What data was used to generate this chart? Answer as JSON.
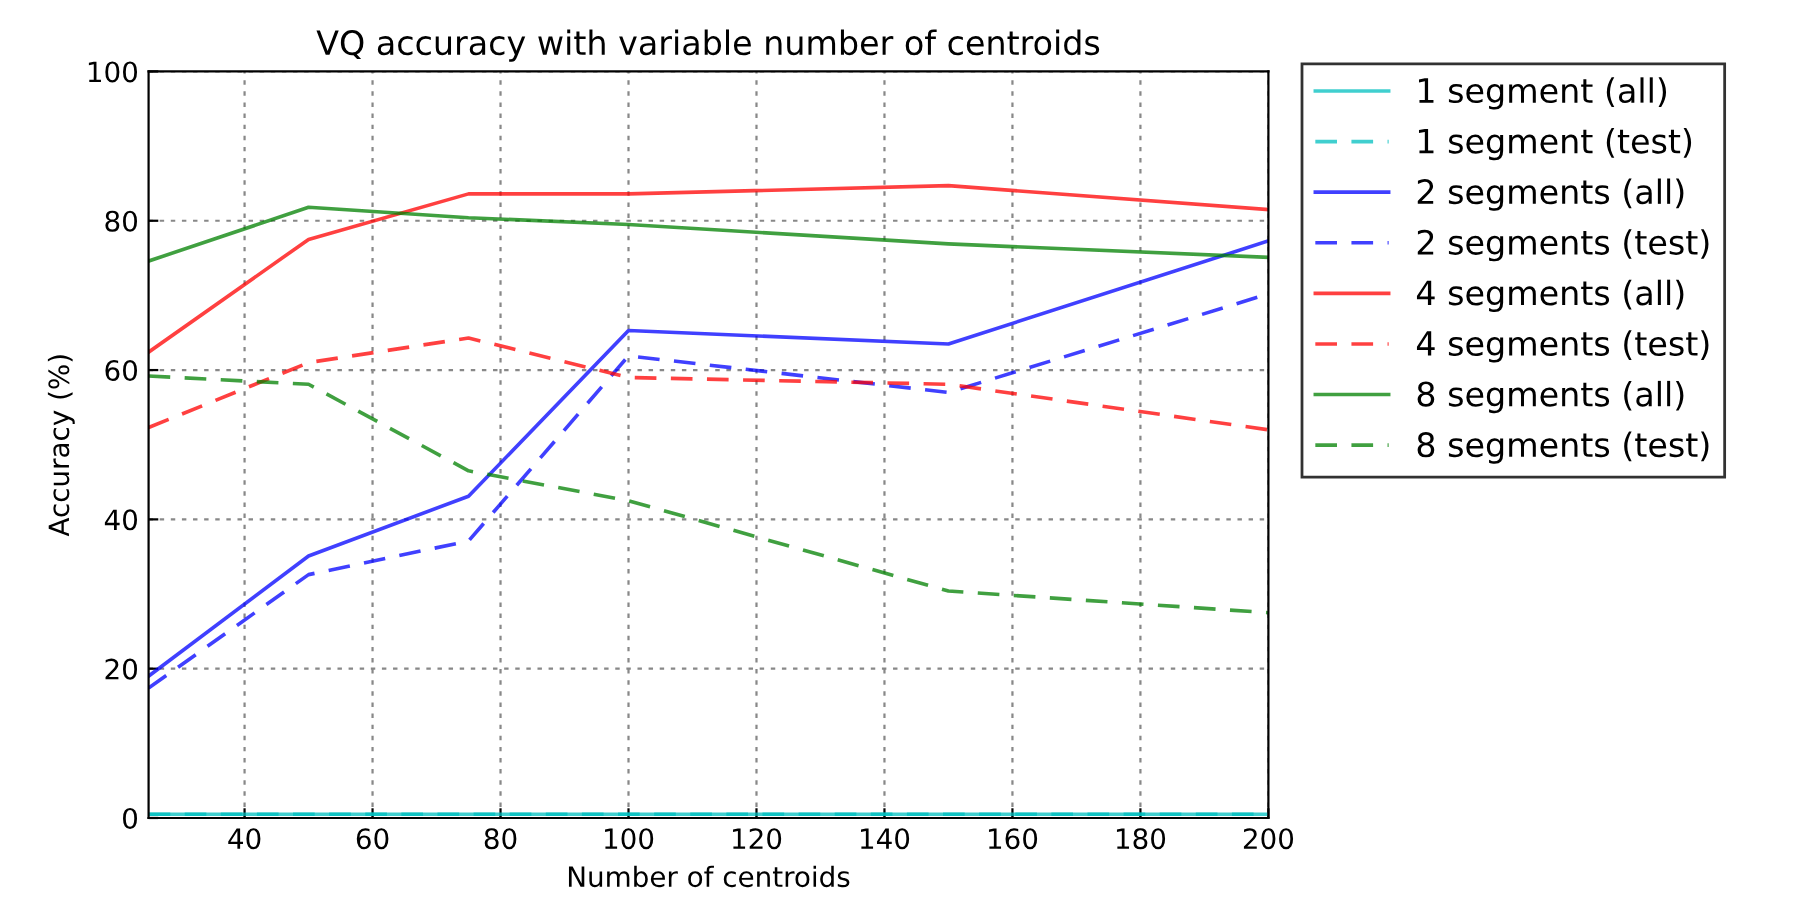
{
  "chart_data": {
    "type": "line",
    "title": "VQ accuracy with variable number of centroids",
    "xlabel": "Number of centroids",
    "ylabel": "Accuracy (%)",
    "x": [
      25,
      50,
      75,
      100,
      150,
      200
    ],
    "series": [
      {
        "name": "1 segment (all)",
        "color": "#00bfbf",
        "line_style": "solid",
        "values": [
          0.5,
          0.5,
          0.5,
          0.5,
          0.5,
          0.5
        ]
      },
      {
        "name": "1 segment (test)",
        "color": "#00bfbf",
        "line_style": "dashed",
        "values": [
          0.5,
          0.5,
          0.5,
          0.5,
          0.5,
          0.5
        ]
      },
      {
        "name": "2 segments (all)",
        "color": "#0000ff",
        "line_style": "solid",
        "values": [
          19.0,
          35.1,
          43.1,
          65.3,
          63.5,
          77.3
        ]
      },
      {
        "name": "2 segments (test)",
        "color": "#0000ff",
        "line_style": "dashed",
        "values": [
          17.4,
          32.6,
          37.1,
          61.9,
          57.0,
          70.2
        ]
      },
      {
        "name": "4 segments (all)",
        "color": "#ff0000",
        "line_style": "solid",
        "values": [
          62.4,
          77.5,
          83.6,
          83.6,
          84.7,
          81.5
        ]
      },
      {
        "name": "4 segments (test)",
        "color": "#ff0000",
        "line_style": "dashed",
        "values": [
          52.3,
          61.0,
          64.3,
          59.0,
          58.1,
          52.0
        ]
      },
      {
        "name": "8 segments (all)",
        "color": "#008000",
        "line_style": "solid",
        "values": [
          74.6,
          81.8,
          80.4,
          79.5,
          76.9,
          75.1
        ]
      },
      {
        "name": "8 segments (test)",
        "color": "#008000",
        "line_style": "dashed",
        "values": [
          59.2,
          58.1,
          46.5,
          42.5,
          30.4,
          27.5
        ]
      }
    ],
    "xlim": [
      25,
      200
    ],
    "xticks": [
      40,
      60,
      80,
      100,
      120,
      140,
      160,
      180,
      200
    ],
    "ylim": [
      0,
      100
    ],
    "yticks": [
      0,
      20,
      40,
      60,
      80,
      100
    ],
    "grid": true,
    "legend": "right"
  }
}
